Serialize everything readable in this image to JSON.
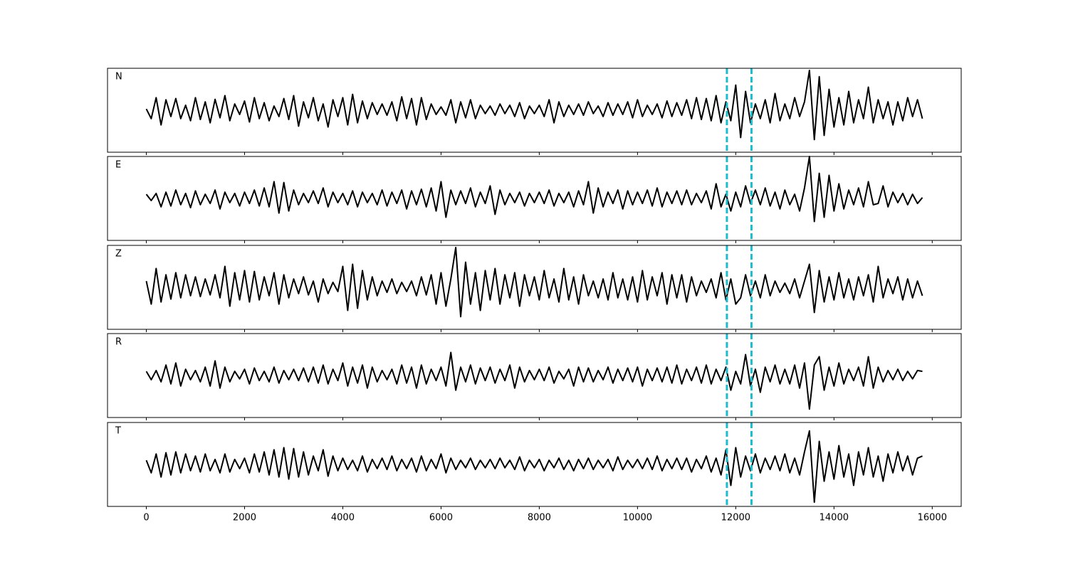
{
  "chart_data": {
    "type": "line",
    "layout": "stacked",
    "x": [
      0,
      100,
      200,
      300,
      400,
      500,
      600,
      700,
      800,
      900,
      1000,
      1100,
      1200,
      1300,
      1400,
      1500,
      1600,
      1700,
      1800,
      1900,
      2000,
      2100,
      2200,
      2300,
      2400,
      2500,
      2600,
      2700,
      2800,
      2900,
      3000,
      3100,
      3200,
      3300,
      3400,
      3500,
      3600,
      3700,
      3800,
      3900,
      4000,
      4100,
      4200,
      4300,
      4400,
      4500,
      4600,
      4700,
      4800,
      4900,
      5000,
      5100,
      5200,
      5300,
      5400,
      5500,
      5600,
      5700,
      5800,
      5900,
      6000,
      6100,
      6200,
      6300,
      6400,
      6500,
      6600,
      6700,
      6800,
      6900,
      7000,
      7100,
      7200,
      7300,
      7400,
      7500,
      7600,
      7700,
      7800,
      7900,
      8000,
      8100,
      8200,
      8300,
      8400,
      8500,
      8600,
      8700,
      8800,
      8900,
      9000,
      9100,
      9200,
      9300,
      9400,
      9500,
      9600,
      9700,
      9800,
      9900,
      10000,
      10100,
      10200,
      10300,
      10400,
      10500,
      10600,
      10700,
      10800,
      10900,
      11000,
      11100,
      11200,
      11300,
      11400,
      11500,
      11600,
      11700,
      11800,
      11900,
      12000,
      12100,
      12200,
      12300,
      12400,
      12500,
      12600,
      12700,
      12800,
      12900,
      13000,
      13100,
      13200,
      13300,
      13400,
      13500,
      13600,
      13700,
      13800,
      13900,
      14000,
      14100,
      14200,
      14300,
      14400,
      14500,
      14600,
      14700,
      14800,
      14900,
      15000,
      15100,
      15200,
      15300,
      15400,
      15500,
      15600,
      15700,
      15800
    ],
    "xlim": [
      -790,
      16590
    ],
    "xticks": [
      0,
      2000,
      4000,
      6000,
      8000,
      10000,
      12000,
      14000,
      16000
    ],
    "ylim": [
      -100,
      100
    ],
    "vlines": [
      11820,
      12320
    ],
    "vline_color": "#17becf",
    "vline_style": "dashed",
    "series": [
      {
        "name": "N",
        "color": "#000000",
        "values": [
          3,
          -20,
          30,
          -35,
          25,
          -15,
          28,
          -20,
          12,
          -25,
          30,
          -22,
          20,
          -30,
          26,
          -18,
          35,
          -25,
          15,
          -10,
          22,
          -28,
          30,
          -20,
          18,
          -25,
          10,
          -15,
          28,
          -22,
          35,
          -38,
          20,
          -18,
          30,
          -25,
          15,
          -40,
          25,
          -15,
          30,
          -35,
          38,
          -30,
          22,
          -20,
          18,
          -10,
          15,
          -12,
          20,
          -25,
          32,
          -20,
          28,
          -35,
          30,
          -22,
          15,
          -10,
          8,
          -12,
          25,
          -30,
          20,
          -18,
          25,
          -20,
          12,
          -8,
          10,
          -12,
          15,
          -8,
          12,
          -15,
          18,
          -20,
          10,
          -8,
          12,
          -15,
          25,
          -30,
          20,
          -15,
          12,
          -10,
          15,
          -12,
          20,
          -8,
          10,
          -15,
          18,
          -12,
          15,
          -10,
          20,
          -18,
          25,
          -15,
          12,
          -10,
          15,
          -18,
          22,
          -15,
          18,
          -12,
          25,
          -20,
          30,
          -22,
          28,
          -25,
          35,
          -30,
          20,
          -25,
          60,
          -65,
          45,
          -30,
          15,
          -20,
          25,
          -30,
          40,
          -25,
          15,
          -20,
          30,
          -15,
          20,
          95,
          -70,
          80,
          -60,
          50,
          -40,
          30,
          -35,
          45,
          -30,
          25,
          -20,
          55,
          -30,
          25,
          -20,
          20,
          -35,
          20,
          -25,
          30,
          -15,
          25,
          -20
        ]
      },
      {
        "name": "E",
        "color": "#000000",
        "values": [
          10,
          -5,
          12,
          -20,
          15,
          -18,
          20,
          -15,
          12,
          -22,
          18,
          -15,
          10,
          -12,
          20,
          -25,
          15,
          -10,
          12,
          -18,
          15,
          -12,
          20,
          -18,
          25,
          -20,
          40,
          -35,
          38,
          -30,
          20,
          -15,
          12,
          -10,
          18,
          -12,
          25,
          -20,
          15,
          -10,
          12,
          -15,
          18,
          -20,
          15,
          -10,
          12,
          -15,
          20,
          -18,
          15,
          -12,
          20,
          -25,
          18,
          -15,
          22,
          -20,
          25,
          -30,
          40,
          -45,
          20,
          -15,
          18,
          -12,
          25,
          -20,
          15,
          -12,
          30,
          -38,
          20,
          -15,
          12,
          -10,
          15,
          -18,
          12,
          -10,
          15,
          -12,
          20,
          -18,
          12,
          -10,
          15,
          -20,
          18,
          -15,
          40,
          -35,
          25,
          -20,
          15,
          -12,
          20,
          -25,
          18,
          -15,
          15,
          -12,
          20,
          -18,
          25,
          -20,
          15,
          -12,
          18,
          -15,
          20,
          -15,
          12,
          -10,
          18,
          -25,
          35,
          -20,
          10,
          -30,
          15,
          -20,
          30,
          -12,
          20,
          -15,
          25,
          -18,
          15,
          -25,
          20,
          -15,
          10,
          -30,
          25,
          100,
          -55,
          60,
          -45,
          55,
          -30,
          35,
          -25,
          20,
          -15,
          25,
          -20,
          40,
          -15,
          -12,
          30,
          -20,
          15,
          -10,
          12,
          -15,
          10,
          -12,
          2
        ]
      },
      {
        "name": "Z",
        "color": "#000000",
        "values": [
          15,
          -40,
          45,
          -35,
          30,
          -28,
          35,
          -25,
          30,
          -20,
          25,
          -22,
          20,
          -18,
          30,
          -25,
          50,
          -45,
          35,
          -30,
          40,
          -35,
          38,
          -30,
          25,
          -20,
          35,
          -40,
          30,
          -25,
          20,
          -15,
          25,
          -18,
          15,
          -35,
          20,
          -15,
          12,
          -10,
          50,
          -55,
          55,
          -50,
          40,
          -30,
          25,
          -20,
          15,
          -12,
          20,
          -15,
          12,
          -10,
          15,
          -20,
          25,
          -18,
          30,
          -40,
          35,
          -45,
          20,
          95,
          -70,
          60,
          -40,
          35,
          -55,
          40,
          -30,
          45,
          -40,
          30,
          -25,
          35,
          -45,
          30,
          -20,
          25,
          -30,
          40,
          -25,
          20,
          -35,
          45,
          -30,
          25,
          -40,
          30,
          -20,
          15,
          -25,
          20,
          -30,
          35,
          -25,
          20,
          -30,
          25,
          -35,
          40,
          -30,
          25,
          -20,
          35,
          -40,
          30,
          -25,
          30,
          -35,
          25,
          -20,
          15,
          -12,
          20,
          -25,
          35,
          -30,
          20,
          -40,
          -25,
          30,
          -20,
          15,
          -25,
          30,
          -20,
          15,
          -12,
          10,
          -15,
          20,
          -25,
          15,
          55,
          -60,
          40,
          -35,
          25,
          -30,
          35,
          -25,
          20,
          -30,
          25,
          -20,
          30,
          -35,
          50,
          -25,
          20,
          -15,
          25,
          -30,
          20,
          -25,
          15,
          -20
        ]
      },
      {
        "name": "R",
        "color": "#000000",
        "values": [
          10,
          -10,
          12,
          -15,
          25,
          -20,
          30,
          -25,
          15,
          -10,
          12,
          -15,
          20,
          -25,
          35,
          -30,
          20,
          -15,
          10,
          -8,
          15,
          -20,
          18,
          -12,
          10,
          -15,
          20,
          -18,
          12,
          -10,
          15,
          -12,
          18,
          -15,
          20,
          -18,
          25,
          -20,
          15,
          -12,
          30,
          -25,
          20,
          -18,
          25,
          -30,
          20,
          -15,
          12,
          -10,
          15,
          -20,
          25,
          -18,
          20,
          -30,
          25,
          -20,
          15,
          -12,
          20,
          -25,
          55,
          -35,
          20,
          -15,
          25,
          -20,
          18,
          -12,
          20,
          -18,
          15,
          -12,
          25,
          -30,
          20,
          -15,
          12,
          -10,
          15,
          -12,
          20,
          -18,
          10,
          -8,
          15,
          -25,
          20,
          -15,
          18,
          -15,
          12,
          -10,
          20,
          -18,
          15,
          -12,
          18,
          -15,
          20,
          -25,
          15,
          -12,
          18,
          -15,
          20,
          -18,
          25,
          -20,
          15,
          -12,
          20,
          -18,
          25,
          -20,
          15,
          -12,
          20,
          -35,
          10,
          -20,
          50,
          -25,
          15,
          -40,
          20,
          -15,
          25,
          -20,
          15,
          -20,
          25,
          -30,
          30,
          -80,
          25,
          45,
          -35,
          20,
          -25,
          30,
          -20,
          15,
          -12,
          20,
          -25,
          45,
          -30,
          20,
          -15,
          12,
          -10,
          15,
          -12,
          10,
          -8,
          12,
          10
        ]
      },
      {
        "name": "T",
        "color": "#000000",
        "values": [
          10,
          -20,
          25,
          -30,
          28,
          -25,
          30,
          -20,
          25,
          -15,
          20,
          -18,
          25,
          -15,
          12,
          -20,
          25,
          -18,
          12,
          -10,
          15,
          -20,
          25,
          -18,
          30,
          -25,
          35,
          -30,
          40,
          -35,
          38,
          -30,
          30,
          -25,
          20,
          -15,
          35,
          -28,
          20,
          -15,
          15,
          -12,
          10,
          -15,
          20,
          -18,
          12,
          -10,
          15,
          -12,
          20,
          -15,
          12,
          -10,
          15,
          -18,
          20,
          -15,
          12,
          -10,
          25,
          -20,
          15,
          -12,
          10,
          -8,
          15,
          -12,
          10,
          -8,
          12,
          -10,
          15,
          -8,
          10,
          -12,
          18,
          -15,
          10,
          -8,
          12,
          -15,
          10,
          -8,
          15,
          -12,
          10,
          -15,
          12,
          -10,
          15,
          -12,
          10,
          -8,
          12,
          -15,
          18,
          -12,
          10,
          -8,
          12,
          -10,
          15,
          -12,
          20,
          -15,
          12,
          -10,
          15,
          -12,
          15,
          -18,
          12,
          -10,
          20,
          -18,
          15,
          -25,
          35,
          -50,
          40,
          -30,
          20,
          -15,
          25,
          -20,
          15,
          -12,
          20,
          -15,
          25,
          -20,
          15,
          -25,
          30,
          80,
          -90,
          55,
          -40,
          30,
          -35,
          45,
          -30,
          25,
          -50,
          30,
          -25,
          40,
          -30,
          20,
          -40,
          25,
          -20,
          30,
          -15,
          20,
          -25,
          15,
          20
        ]
      }
    ]
  }
}
